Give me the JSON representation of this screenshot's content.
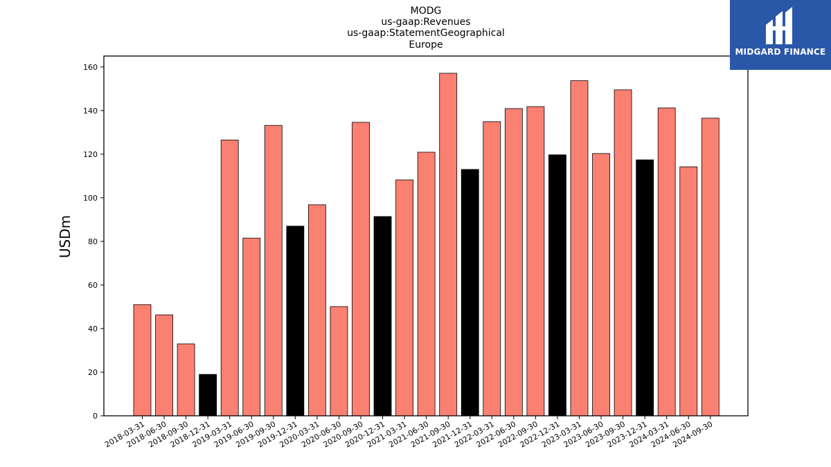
{
  "brand": {
    "name": "MIDGARD FINANCE",
    "color": "#2b57a8",
    "icon": "midgard-logo-icon"
  },
  "chart_data": {
    "type": "bar",
    "title_lines": [
      "MODG",
      "us-gaap:Revenues",
      "us-gaap:StatementGeographical",
      "Europe"
    ],
    "xlabel": "",
    "ylabel": "USDm",
    "ylim": [
      0,
      165
    ],
    "yticks": [
      0,
      20,
      40,
      60,
      80,
      100,
      120,
      140,
      160
    ],
    "grid": false,
    "legend": "none",
    "colors": {
      "quarter": "#fa8072",
      "year_end": "#000000",
      "edge": "#000000"
    },
    "categories": [
      "2018-03-31",
      "2018-06-30",
      "2018-09-30",
      "2018-12-31",
      "2019-03-31",
      "2019-06-30",
      "2019-09-30",
      "2019-12-31",
      "2020-03-31",
      "2020-06-30",
      "2020-09-30",
      "2020-12-31",
      "2021-03-31",
      "2021-06-30",
      "2021-09-30",
      "2021-12-31",
      "2022-03-31",
      "2022-06-30",
      "2022-09-30",
      "2022-12-31",
      "2023-03-31",
      "2023-06-30",
      "2023-09-30",
      "2023-12-31",
      "2024-03-31",
      "2024-06-30",
      "2024-09-30"
    ],
    "values": [
      51,
      46.3,
      33,
      19,
      126.5,
      81.5,
      133.2,
      87,
      96.8,
      50.1,
      134.6,
      91.4,
      108.2,
      120.9,
      157.1,
      113,
      134.9,
      140.9,
      141.8,
      119.7,
      153.7,
      120.3,
      149.5,
      117.4,
      141.2,
      114.2,
      136.5
    ]
  }
}
